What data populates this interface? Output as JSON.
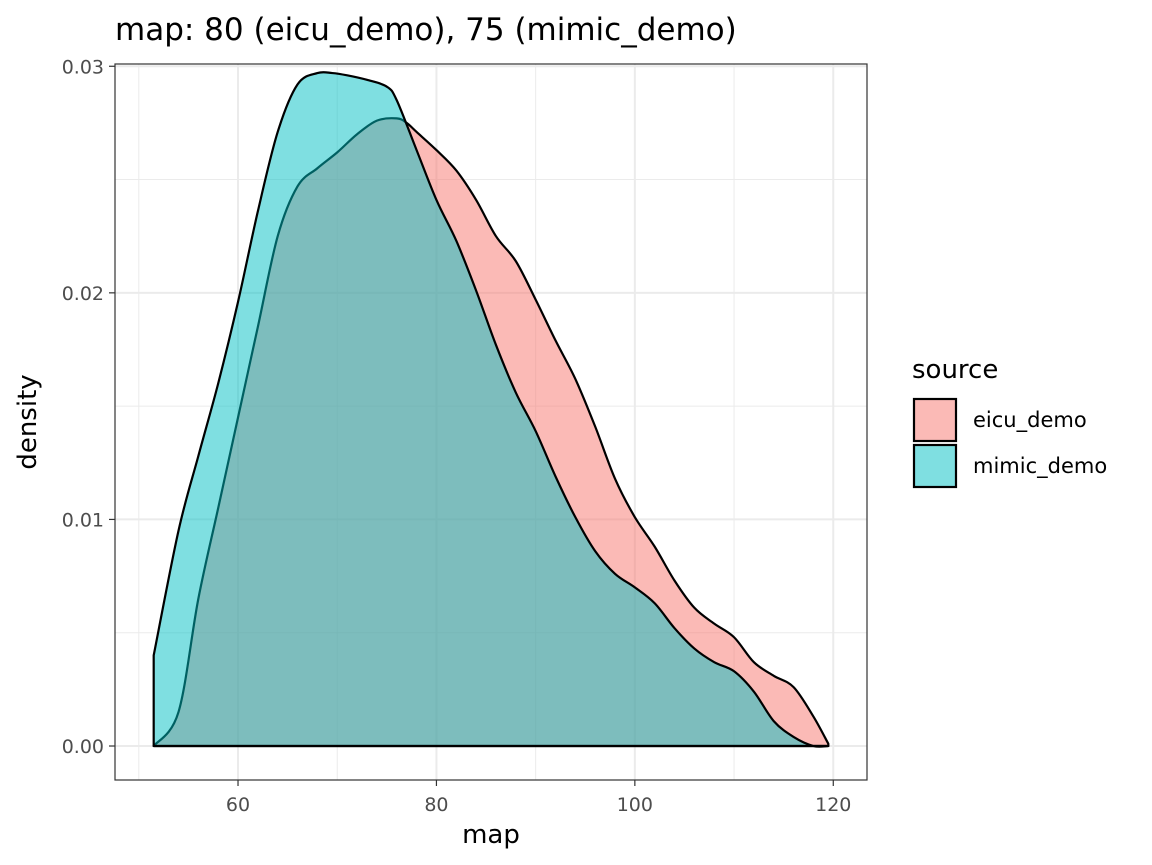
{
  "chart_data": {
    "type": "area",
    "title": "map: 80 (eicu_demo), 75 (mimic_demo)",
    "xlabel": "map",
    "ylabel": "density",
    "xlim": [
      47.6,
      123.4
    ],
    "ylim": [
      -0.0015,
      0.0301
    ],
    "x_ticks": [
      60,
      80,
      100,
      120
    ],
    "y_ticks": [
      0.0,
      0.01,
      0.02,
      0.03
    ],
    "x_tick_labels": [
      "60",
      "80",
      "100",
      "120"
    ],
    "y_tick_labels": [
      "0.00",
      "0.01",
      "0.02",
      "0.03"
    ],
    "grid": true,
    "legend": {
      "title": "source",
      "position": "right"
    },
    "series": [
      {
        "name": "eicu_demo",
        "fill": "#F8766D",
        "x": [
          51.5,
          54,
          56,
          58,
          60,
          62,
          64,
          66,
          68,
          70,
          72,
          74,
          76,
          77,
          78,
          80,
          82,
          84,
          86,
          88,
          90,
          92,
          94,
          96,
          98,
          100,
          102,
          104,
          106,
          108,
          110,
          112,
          114,
          116,
          118,
          119.5
        ],
        "y": [
          0.0,
          0.0015,
          0.0065,
          0.0105,
          0.0145,
          0.0185,
          0.0225,
          0.0247,
          0.0255,
          0.0262,
          0.027,
          0.0276,
          0.0277,
          0.0275,
          0.0271,
          0.0263,
          0.0254,
          0.0241,
          0.0225,
          0.0214,
          0.0197,
          0.0179,
          0.0162,
          0.0141,
          0.0118,
          0.0101,
          0.0088,
          0.0073,
          0.0061,
          0.0054,
          0.0048,
          0.0037,
          0.0031,
          0.0026,
          0.0013,
          0.0001
        ]
      },
      {
        "name": "mimic_demo",
        "fill": "#00BFC4",
        "x": [
          51.5,
          54,
          56,
          58,
          60,
          62,
          64,
          66,
          68,
          69.5,
          71,
          73,
          75,
          76,
          78,
          80,
          82,
          84,
          86,
          88,
          90,
          92,
          94,
          96,
          98,
          100,
          102,
          104,
          106,
          108,
          110,
          112,
          114,
          116,
          118,
          119.5
        ],
        "y": [
          0.004,
          0.0095,
          0.0128,
          0.016,
          0.0196,
          0.0236,
          0.0271,
          0.0292,
          0.0297,
          0.0297,
          0.0296,
          0.0294,
          0.0291,
          0.0285,
          0.0263,
          0.0241,
          0.0223,
          0.0201,
          0.0177,
          0.0156,
          0.0139,
          0.0119,
          0.0101,
          0.0086,
          0.0076,
          0.007,
          0.0063,
          0.0052,
          0.0043,
          0.0037,
          0.0033,
          0.0024,
          0.0011,
          0.0004,
          0.0,
          0.0
        ]
      }
    ]
  }
}
